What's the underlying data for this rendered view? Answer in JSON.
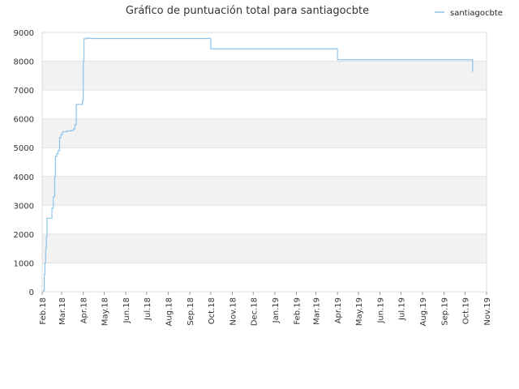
{
  "chart_data": {
    "type": "line",
    "title": "Gráfico de puntuación total para santiagocbte",
    "xlabel": "",
    "ylabel": "",
    "ylim": [
      0,
      9000
    ],
    "yticks": [
      0,
      1000,
      2000,
      3000,
      4000,
      5000,
      6000,
      7000,
      8000,
      9000
    ],
    "xlim": [
      "2018-02-01",
      "2019-11-01"
    ],
    "xtick_labels": [
      "Feb.18",
      "Mar.18",
      "Apr.18",
      "May.18",
      "Jun.18",
      "Jul.18",
      "Aug.18",
      "Sep.18",
      "Oct.18",
      "Nov.18",
      "Dec.18",
      "Jan.19",
      "Feb.19",
      "Mar.19",
      "Apr.19",
      "May.19",
      "Jun.19",
      "Jul.19",
      "Aug.19",
      "Sep.19",
      "Oct.19",
      "Nov.19"
    ],
    "xtick_dates": [
      "2018-02-01",
      "2018-03-01",
      "2018-04-01",
      "2018-05-01",
      "2018-06-01",
      "2018-07-01",
      "2018-08-01",
      "2018-09-01",
      "2018-10-01",
      "2018-11-01",
      "2018-12-01",
      "2019-01-01",
      "2019-02-01",
      "2019-03-01",
      "2019-04-01",
      "2019-05-01",
      "2019-06-01",
      "2019-07-01",
      "2019-08-01",
      "2019-09-01",
      "2019-10-01",
      "2019-11-01"
    ],
    "grid": true,
    "banded_background": true,
    "legend_position": "top-right",
    "series": [
      {
        "name": "santiagocbte",
        "color": "#8ec4ea",
        "points": [
          [
            "2018-02-02",
            0
          ],
          [
            "2018-02-03",
            50
          ],
          [
            "2018-02-04",
            600
          ],
          [
            "2018-02-05",
            1000
          ],
          [
            "2018-02-06",
            1500
          ],
          [
            "2018-02-07",
            1900
          ],
          [
            "2018-02-08",
            2550
          ],
          [
            "2018-02-13",
            2550
          ],
          [
            "2018-02-15",
            2900
          ],
          [
            "2018-02-17",
            3300
          ],
          [
            "2018-02-19",
            4000
          ],
          [
            "2018-02-20",
            4700
          ],
          [
            "2018-02-22",
            4800
          ],
          [
            "2018-02-24",
            4900
          ],
          [
            "2018-02-26",
            5350
          ],
          [
            "2018-02-28",
            5450
          ],
          [
            "2018-03-02",
            5550
          ],
          [
            "2018-03-08",
            5580
          ],
          [
            "2018-03-14",
            5600
          ],
          [
            "2018-03-18",
            5650
          ],
          [
            "2018-03-20",
            5800
          ],
          [
            "2018-03-22",
            6500
          ],
          [
            "2018-03-28",
            6500
          ],
          [
            "2018-03-31",
            6650
          ],
          [
            "2018-04-01",
            8000
          ],
          [
            "2018-04-02",
            8780
          ],
          [
            "2018-04-06",
            8800
          ],
          [
            "2018-04-12",
            8790
          ],
          [
            "2018-10-01",
            8430
          ],
          [
            "2019-04-01",
            8050
          ],
          [
            "2019-10-12",
            7630
          ]
        ]
      }
    ]
  }
}
